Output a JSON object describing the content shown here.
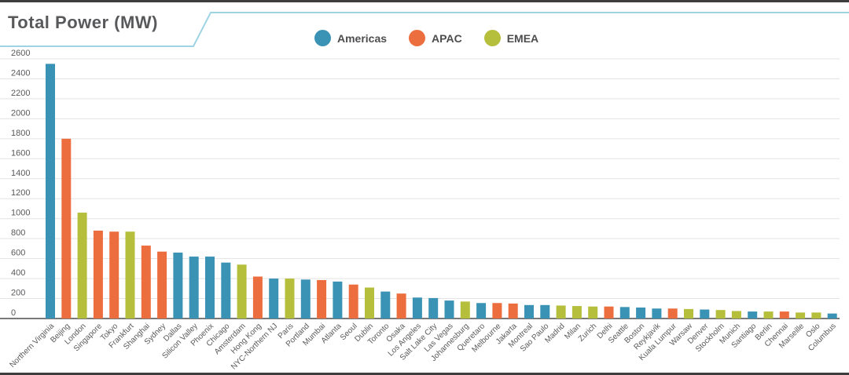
{
  "header": {
    "title": "Total Power (MW)"
  },
  "legend": [
    {
      "name": "Americas",
      "color": "#3a93b4",
      "icon": "circle-icon"
    },
    {
      "name": "APAC",
      "color": "#ec6e3e",
      "icon": "circle-icon"
    },
    {
      "name": "EMEA",
      "color": "#b5bf3b",
      "icon": "circle-icon"
    }
  ],
  "chart_data": {
    "type": "bar",
    "title": "Total Power (MW)",
    "xlabel": "",
    "ylabel": "",
    "ylim": [
      0,
      2600
    ],
    "yticks": [
      0,
      200,
      400,
      600,
      800,
      1000,
      1200,
      1400,
      1600,
      1800,
      2000,
      2200,
      2400,
      2600
    ],
    "grid": true,
    "legend_position": "top-center",
    "colors": {
      "Americas": "#3a93b4",
      "APAC": "#ec6e3e",
      "EMEA": "#b5bf3b"
    },
    "categories": [
      "Northern Virginia",
      "Beijing",
      "London",
      "Singapore",
      "Tokyo",
      "Frankfurt",
      "Shanghai",
      "Sydney",
      "Dallas",
      "Silicon Valley",
      "Phoenix",
      "Chicago",
      "Amsterdam",
      "Hong Kong",
      "NYC-Northern NJ",
      "Paris",
      "Portland",
      "Mumbai",
      "Atlanta",
      "Seoul",
      "Dublin",
      "Toronto",
      "Osaka",
      "Los Angeles",
      "Salt Lake City",
      "Las Vegas",
      "Johannesburg",
      "Queretaro",
      "Melbourne",
      "Jakarta",
      "Montreal",
      "Sao Paulo",
      "Madrid",
      "Milan",
      "Zurich",
      "Delhi",
      "Seattle",
      "Boston",
      "Reykjavik",
      "Kuala Lumpur",
      "Warsaw",
      "Denver",
      "Stockholm",
      "Munich",
      "Santiago",
      "Berlin",
      "Chennai",
      "Marseille",
      "Oslo",
      "Columbus"
    ],
    "regions": [
      "Americas",
      "APAC",
      "EMEA",
      "APAC",
      "APAC",
      "EMEA",
      "APAC",
      "APAC",
      "Americas",
      "Americas",
      "Americas",
      "Americas",
      "EMEA",
      "APAC",
      "Americas",
      "EMEA",
      "Americas",
      "APAC",
      "Americas",
      "APAC",
      "EMEA",
      "Americas",
      "APAC",
      "Americas",
      "Americas",
      "Americas",
      "EMEA",
      "Americas",
      "APAC",
      "APAC",
      "Americas",
      "Americas",
      "EMEA",
      "EMEA",
      "EMEA",
      "APAC",
      "Americas",
      "Americas",
      "Americas",
      "APAC",
      "EMEA",
      "Americas",
      "EMEA",
      "EMEA",
      "Americas",
      "EMEA",
      "APAC",
      "EMEA",
      "EMEA",
      "Americas"
    ],
    "values": [
      2550,
      1800,
      1060,
      880,
      870,
      870,
      730,
      670,
      660,
      620,
      620,
      560,
      540,
      420,
      400,
      400,
      390,
      385,
      370,
      340,
      310,
      270,
      250,
      210,
      205,
      180,
      170,
      155,
      155,
      150,
      135,
      135,
      130,
      125,
      120,
      120,
      115,
      110,
      100,
      100,
      95,
      90,
      85,
      75,
      70,
      70,
      70,
      60,
      60,
      50
    ]
  }
}
